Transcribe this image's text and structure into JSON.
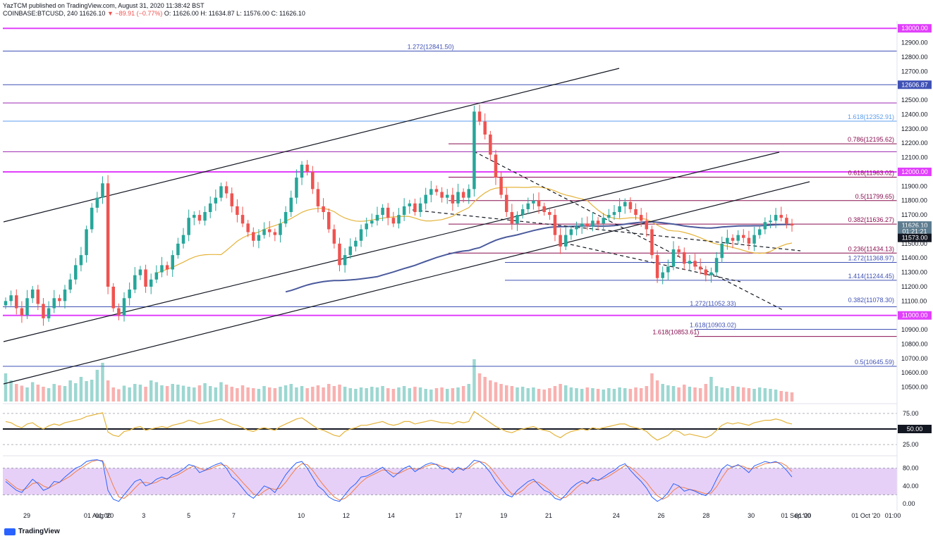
{
  "header": {
    "publisher": "YazTCM published on TradingView.com, August 31, 2020 11:38:42 BST",
    "symbol_line": "COINBASE:BTCUSD, 240",
    "ohlc_prefix": "11626.10",
    "change": "▼ −89.91 (−0.77%)",
    "ohlc": "O: 11626.00  H: 11634.87  L: 11576.00  C: 11626.10"
  },
  "footer": {
    "brand": "TradingView"
  },
  "colors": {
    "up": "#26a69a",
    "down": "#ef5350",
    "magenta": "#e040fb",
    "purple_line": "#9c27b0",
    "blue_line": "#3f51b5",
    "dark_red": "#880e4f",
    "ema_yellow": "#e4b33a",
    "ema_blue": "#4a5a9c",
    "stoch_fill": "#e1c4f5"
  },
  "chart_data": {
    "type": "candlestick",
    "price_axis": {
      "min": 10400,
      "max": 13050,
      "ticks": [
        10500,
        10600,
        10700,
        10800,
        10900,
        11000,
        11100,
        11200,
        11300,
        11400,
        11500,
        11600,
        11700,
        11800,
        11900,
        12000,
        12100,
        12200,
        12300,
        12400,
        12500,
        12600,
        12700,
        12800,
        12900,
        13000
      ]
    },
    "price_badges": [
      {
        "label": "13000.00",
        "value": 13000,
        "color": "#e040fb"
      },
      {
        "label": "12606.87",
        "value": 12606.87,
        "color": "#3f51b5"
      },
      {
        "label": "12000.00",
        "value": 12000,
        "color": "#e040fb"
      },
      {
        "label": "11626.10",
        "value": 11626.1,
        "color": "#5d7c8f"
      },
      {
        "label": "01:21:21",
        "value": 11585,
        "color": "#5d7c8f"
      },
      {
        "label": "11573.00",
        "value": 11540,
        "color": "#131722"
      },
      {
        "label": "11000.00",
        "value": 11000,
        "color": "#e040fb"
      }
    ],
    "horizontal_levels": [
      {
        "value": 13000,
        "color": "#e040fb",
        "width": 2
      },
      {
        "value": 12841.5,
        "color": "#3f51b5",
        "width": 1
      },
      {
        "value": 12606.87,
        "color": "#3f51b5",
        "width": 1
      },
      {
        "value": 12480,
        "color": "#9c27b0",
        "width": 1
      },
      {
        "value": 12352.91,
        "color": "#5c9ded",
        "width": 1
      },
      {
        "value": 12140,
        "color": "#9c27b0",
        "width": 1
      },
      {
        "value": 12000,
        "color": "#e040fb",
        "width": 2
      },
      {
        "value": 11000,
        "color": "#e040fb",
        "width": 2
      },
      {
        "value": 11060,
        "color": "#3f51b5",
        "width": 1
      },
      {
        "value": 10645.59,
        "color": "#3f51b5",
        "width": 1
      }
    ],
    "fib_labels": [
      {
        "text": "1.272(12841.50)",
        "value": 12841.5,
        "x_date": 14.5,
        "color": "#3f51b5"
      },
      {
        "text": "1.618(12352.91)",
        "value": 12352.91,
        "x_date": -1,
        "color": "#5c9ded"
      },
      {
        "text": "0.786(12195.62)",
        "value": 12195.62,
        "x_date": -1,
        "color": "#880e4f"
      },
      {
        "text": "0.618(11963.02)",
        "value": 11963.02,
        "x_date": -1,
        "color": "#880e4f"
      },
      {
        "text": "0.5(11799.65)",
        "value": 11799.65,
        "x_date": -1,
        "color": "#880e4f"
      },
      {
        "text": "0.382(11636.27)",
        "value": 11636.27,
        "x_date": -1,
        "color": "#880e4f"
      },
      {
        "text": "0.236(11434.13)",
        "value": 11434.13,
        "x_date": -1,
        "color": "#880e4f"
      },
      {
        "text": "1.272(11368.97)",
        "value": 11368.97,
        "x_date": -1,
        "color": "#3f51b5"
      },
      {
        "text": "1.414(11244.45)",
        "value": 11244.45,
        "x_date": -1,
        "color": "#3f51b5"
      },
      {
        "text": "0.382(11078.30)",
        "value": 11078.3,
        "x_date": -1,
        "color": "#3f51b5"
      },
      {
        "text": "1.272(11052.33)",
        "value": 11052.33,
        "x_date": 27.05,
        "color": "#3f51b5"
      },
      {
        "text": "1.618(10903.02)",
        "value": 10903.02,
        "x_date": 27.05,
        "color": "#3f51b5"
      },
      {
        "text": "1.618(10853.61)",
        "value": 10853.61,
        "x_date": 25.4,
        "color": "#880e4f"
      },
      {
        "text": "0.5(10645.59)",
        "value": 10645.59,
        "x_date": -1,
        "color": "#3f51b5"
      }
    ],
    "time_axis": {
      "labels": [
        {
          "text": "29",
          "d": -2
        },
        {
          "text": "01 Aug '20",
          "d": 0
        },
        {
          "text": "01:00",
          "d": 0.2
        },
        {
          "text": "3",
          "d": 2
        },
        {
          "text": "5",
          "d": 4
        },
        {
          "text": "7",
          "d": 6
        },
        {
          "text": "10",
          "d": 9
        },
        {
          "text": "12",
          "d": 11
        },
        {
          "text": "14",
          "d": 13
        },
        {
          "text": "17",
          "d": 16
        },
        {
          "text": "19",
          "d": 18
        },
        {
          "text": "21",
          "d": 20
        },
        {
          "text": "24",
          "d": 23
        },
        {
          "text": "26",
          "d": 25
        },
        {
          "text": "28",
          "d": 27
        },
        {
          "text": "30",
          "d": 29
        },
        {
          "text": "01 Sep '20",
          "d": 31
        },
        {
          "text": "01:00",
          "d": 31.3
        },
        {
          "text": "01 Oct '20",
          "d": 34.1
        },
        {
          "text": "01:00",
          "d": 35.3
        }
      ]
    },
    "closes": [
      11100,
      11140,
      11050,
      11000,
      11120,
      11180,
      11080,
      10980,
      11050,
      11120,
      11100,
      11180,
      11250,
      11350,
      11420,
      11600,
      11750,
      11820,
      11920,
      11200,
      11050,
      11000,
      11120,
      11180,
      11280,
      11320,
      11200,
      11250,
      11300,
      11350,
      11320,
      11420,
      11500,
      11560,
      11680,
      11700,
      11660,
      11720,
      11780,
      11820,
      11900,
      11850,
      11760,
      11700,
      11640,
      11580,
      11520,
      11560,
      11600,
      11580,
      11560,
      11640,
      11720,
      11820,
      11960,
      12050,
      12000,
      11880,
      11760,
      11720,
      11600,
      11500,
      11350,
      11420,
      11480,
      11520,
      11600,
      11640,
      11660,
      11700,
      11750,
      11680,
      11640,
      11700,
      11760,
      11780,
      11720,
      11780,
      11840,
      11880,
      11860,
      11820,
      11840,
      11780,
      11860,
      11820,
      11880,
      12420,
      12350,
      12260,
      12120,
      11960,
      11840,
      11720,
      11640,
      11700,
      11740,
      11780,
      11800,
      11760,
      11720,
      11700,
      11560,
      11480,
      11560,
      11600,
      11620,
      11640,
      11620,
      11660,
      11640,
      11680,
      11700,
      11720,
      11760,
      11790,
      11740,
      11700,
      11660,
      11600,
      11420,
      11260,
      11300,
      11340,
      11460,
      11440,
      11360,
      11380,
      11340,
      11320,
      11280,
      11300,
      11400,
      11500,
      11540,
      11520,
      11560,
      11540,
      11500,
      11560,
      11600,
      11650,
      11660,
      11700,
      11680,
      11640,
      11626
    ],
    "volume": [
      80,
      60,
      50,
      45,
      40,
      55,
      48,
      42,
      38,
      50,
      46,
      44,
      60,
      52,
      70,
      58,
      62,
      90,
      110,
      60,
      40,
      35,
      45,
      40,
      50,
      48,
      42,
      60,
      55,
      46,
      44,
      50,
      48,
      45,
      42,
      40,
      46,
      52,
      44,
      40,
      55,
      48,
      42,
      38,
      46,
      40,
      38,
      36,
      44,
      40,
      38,
      42,
      46,
      50,
      40,
      44,
      38,
      42,
      46,
      40,
      50,
      44,
      48,
      42,
      38,
      36,
      40,
      38,
      42,
      40,
      44,
      38,
      36,
      40,
      44,
      38,
      42,
      40,
      36,
      34,
      38,
      40,
      36,
      38,
      40,
      44,
      50,
      120,
      80,
      70,
      60,
      55,
      50,
      46,
      44,
      40,
      42,
      38,
      40,
      36,
      34,
      38,
      44,
      50,
      46,
      40,
      38,
      36,
      40,
      38,
      36,
      34,
      38,
      36,
      40,
      38,
      36,
      40,
      38,
      44,
      80,
      60,
      50,
      46,
      44,
      40,
      48,
      42,
      40,
      38,
      50,
      70,
      44,
      40,
      38,
      44,
      42,
      40,
      38,
      36,
      40,
      38,
      36,
      34,
      30,
      28,
      26
    ],
    "rsi": {
      "ticks": [
        75,
        50,
        25
      ],
      "badge": "50.00",
      "values": [
        62,
        60,
        55,
        52,
        58,
        60,
        54,
        50,
        55,
        58,
        56,
        60,
        62,
        64,
        66,
        70,
        72,
        74,
        76,
        45,
        40,
        38,
        46,
        48,
        52,
        54,
        48,
        50,
        52,
        54,
        52,
        56,
        58,
        60,
        64,
        62,
        58,
        60,
        62,
        64,
        66,
        62,
        58,
        56,
        52,
        48,
        46,
        50,
        52,
        50,
        48,
        54,
        58,
        62,
        66,
        68,
        62,
        56,
        50,
        48,
        44,
        40,
        38,
        46,
        50,
        52,
        56,
        56,
        58,
        60,
        62,
        58,
        56,
        58,
        62,
        62,
        58,
        60,
        62,
        64,
        62,
        60,
        60,
        58,
        62,
        60,
        62,
        78,
        72,
        66,
        60,
        54,
        50,
        46,
        44,
        48,
        50,
        52,
        54,
        50,
        48,
        46,
        40,
        36,
        42,
        46,
        48,
        50,
        48,
        52,
        50,
        52,
        54,
        56,
        58,
        58,
        54,
        52,
        50,
        46,
        38,
        32,
        36,
        40,
        48,
        46,
        40,
        42,
        40,
        38,
        36,
        40,
        48,
        56,
        60,
        58,
        60,
        58,
        56,
        60,
        62,
        64,
        64,
        66,
        64,
        60,
        58
      ]
    },
    "stoch": {
      "ticks": [
        80,
        40,
        0
      ],
      "k": [
        50,
        40,
        30,
        25,
        40,
        55,
        45,
        30,
        35,
        50,
        48,
        60,
        70,
        80,
        85,
        95,
        98,
        99,
        95,
        30,
        10,
        5,
        20,
        35,
        50,
        55,
        40,
        45,
        55,
        60,
        55,
        65,
        70,
        78,
        88,
        85,
        70,
        75,
        82,
        88,
        92,
        80,
        60,
        50,
        35,
        20,
        12,
        25,
        40,
        35,
        25,
        45,
        65,
        80,
        92,
        95,
        80,
        60,
        40,
        30,
        15,
        8,
        5,
        20,
        35,
        45,
        60,
        62,
        68,
        75,
        82,
        70,
        60,
        70,
        80,
        85,
        72,
        80,
        88,
        92,
        88,
        78,
        80,
        70,
        82,
        75,
        85,
        98,
        95,
        85,
        70,
        50,
        35,
        20,
        15,
        30,
        40,
        50,
        55,
        42,
        30,
        25,
        12,
        8,
        20,
        35,
        45,
        52,
        45,
        58,
        52,
        60,
        68,
        75,
        85,
        90,
        75,
        62,
        50,
        35,
        15,
        5,
        12,
        25,
        45,
        40,
        28,
        32,
        28,
        22,
        18,
        30,
        55,
        78,
        88,
        82,
        88,
        80,
        70,
        85,
        90,
        95,
        92,
        95,
        88,
        75,
        60
      ],
      "d": [
        55,
        45,
        35,
        30,
        35,
        45,
        48,
        40,
        35,
        42,
        48,
        55,
        62,
        72,
        80,
        88,
        95,
        98,
        97,
        70,
        40,
        15,
        12,
        22,
        35,
        47,
        48,
        45,
        48,
        55,
        57,
        60,
        65,
        72,
        80,
        85,
        80,
        75,
        78,
        84,
        88,
        86,
        75,
        62,
        48,
        35,
        22,
        18,
        28,
        35,
        32,
        35,
        48,
        65,
        80,
        90,
        88,
        75,
        58,
        42,
        28,
        15,
        8,
        12,
        22,
        35,
        48,
        58,
        64,
        70,
        76,
        75,
        68,
        68,
        74,
        80,
        78,
        78,
        84,
        88,
        89,
        84,
        80,
        76,
        78,
        78,
        80,
        90,
        95,
        92,
        82,
        66,
        50,
        35,
        22,
        22,
        30,
        42,
        50,
        48,
        40,
        30,
        20,
        12,
        14,
        24,
        36,
        46,
        48,
        52,
        54,
        56,
        62,
        70,
        78,
        86,
        82,
        72,
        60,
        48,
        32,
        18,
        10,
        16,
        30,
        38,
        36,
        32,
        30,
        26,
        22,
        24,
        38,
        58,
        76,
        84,
        86,
        84,
        78,
        80,
        85,
        90,
        92,
        93,
        92,
        85,
        72
      ]
    }
  }
}
